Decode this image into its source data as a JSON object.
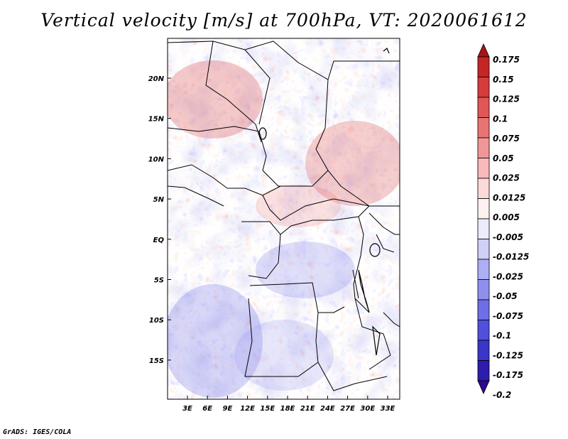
{
  "title": "Vertical velocity [m/s] at 700hPa, VT: 2020061612",
  "credit": "GrADS: IGES/COLA",
  "map": {
    "lat_labels": [
      "20N",
      "15N",
      "10N",
      "5N",
      "EQ",
      "5S",
      "10S",
      "15S"
    ],
    "lon_labels": [
      "3E",
      "6E",
      "9E",
      "12E",
      "15E",
      "18E",
      "21E",
      "24E",
      "27E",
      "30E",
      "33E"
    ]
  },
  "colorbar": {
    "colors": [
      "#2c0a8c",
      "#2e1cad",
      "#3a36c8",
      "#5050dc",
      "#6e6ee6",
      "#8f8fee",
      "#aeaef4",
      "#cfcff8",
      "#ebebfc",
      "#fdf0f0",
      "#fbd9d9",
      "#f7b9b9",
      "#f19696",
      "#e97474",
      "#e15656",
      "#d63c3c",
      "#c42626",
      "#a81414"
    ],
    "labels": [
      "0.175",
      "0.15",
      "0.125",
      "0.1",
      "0.075",
      "0.05",
      "0.025",
      "0.0125",
      "0.005",
      "-0.005",
      "-0.0125",
      "-0.025",
      "-0.05",
      "-0.075",
      "-0.1",
      "-0.125",
      "-0.175",
      "-0.2"
    ]
  }
}
